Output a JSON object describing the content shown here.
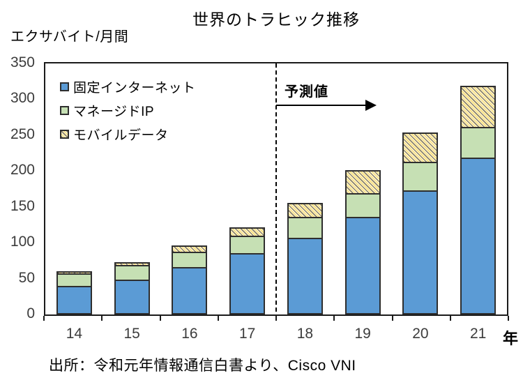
{
  "title": "世界のトラヒック推移",
  "y_axis_unit": "エクサバイト/月間",
  "x_axis_unit": "年",
  "forecast_label": "予測値",
  "source": "出所：令和元年情報通信白書より、Cisco VNI",
  "legend": [
    {
      "label": "固定インターネット",
      "key": "fixed",
      "swatch": "solid-blue"
    },
    {
      "label": "マネージドIP",
      "key": "managed",
      "swatch": "solid-green"
    },
    {
      "label": "モバイルデータ",
      "key": "mobile",
      "swatch": "diagonal-hatch-cream"
    }
  ],
  "colors": {
    "fixed": "#5B9BD5",
    "managed": "#C6E0B4",
    "mobile_bg": "#FCF4DB",
    "hatch_dark": "#8E8565",
    "hatch_yellow": "#FFE27A",
    "bar_border": "#2E2E2E",
    "axis": "#1A1A1A",
    "tick_label": "#3C3C3C"
  },
  "chart_data": {
    "type": "bar",
    "stacked": true,
    "title": "世界のトラヒック推移",
    "ylabel": "エクサバイト/月間",
    "xlabel": "年",
    "ylim": [
      0,
      350
    ],
    "yticks": [
      0,
      50,
      100,
      150,
      200,
      250,
      300,
      350
    ],
    "grid": false,
    "legend_position": "top-left-inside",
    "categories": [
      "14",
      "15",
      "16",
      "17",
      "18",
      "19",
      "20",
      "21"
    ],
    "series": [
      {
        "name": "固定インターネット",
        "values": [
          40,
          49,
          66,
          86,
          107,
          136,
          173,
          219
        ]
      },
      {
        "name": "マネージドIP",
        "values": [
          17,
          20,
          22,
          24,
          29,
          33,
          40,
          43
        ]
      },
      {
        "name": "モバイルデータ",
        "values": [
          3,
          4,
          8,
          12,
          20,
          32,
          41,
          57
        ]
      }
    ],
    "totals": [
      60,
      73,
      96,
      122,
      156,
      201,
      254,
      319
    ],
    "forecast_from_category": "18",
    "forecast_annotation": "予測値"
  }
}
